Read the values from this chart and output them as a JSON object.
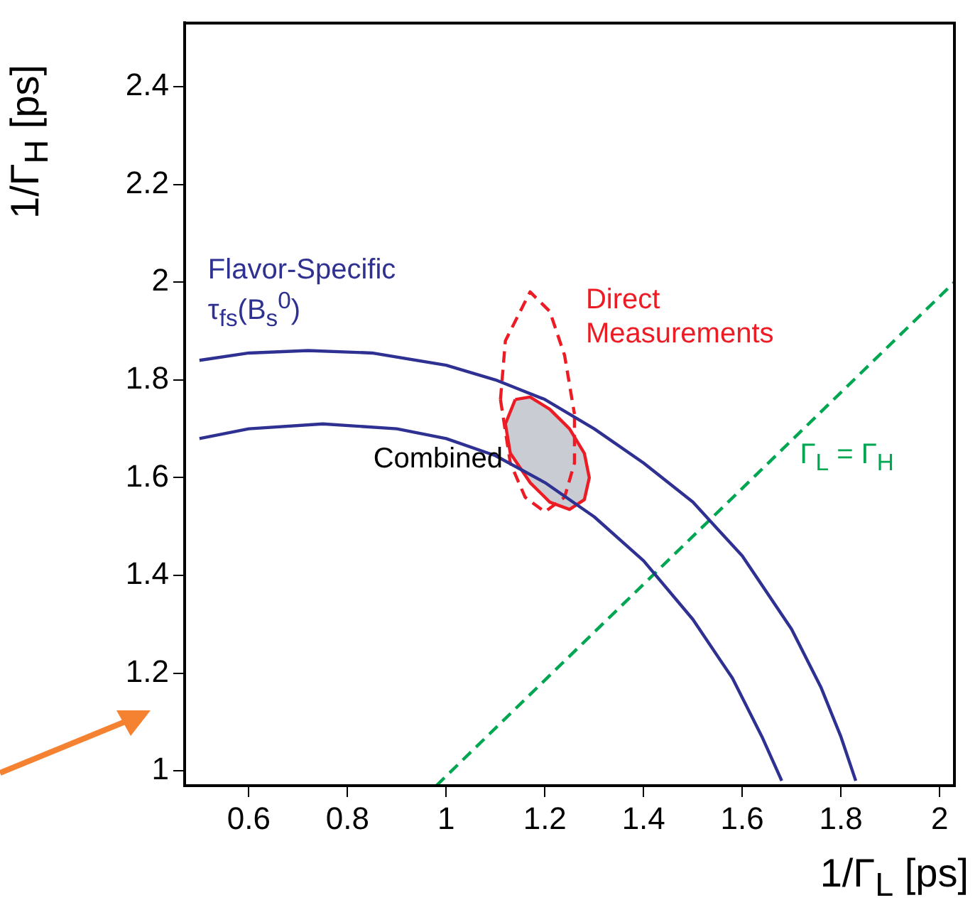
{
  "chart_data": {
    "type": "line",
    "xlabel": "1/Γ$_{L}$ [ps]",
    "ylabel": "1/Γ$_{H}$ [ps]",
    "xlim": [
      0.47,
      2.03
    ],
    "xticks": [
      0.6,
      0.8,
      1,
      1.2,
      1.4,
      1.6,
      1.8,
      2
    ],
    "ylim": [
      0.97,
      2.53
    ],
    "yticks": [
      1,
      1.2,
      1.4,
      1.6,
      1.8,
      2,
      2.2,
      2.4
    ],
    "grid": false,
    "legend": false,
    "series": [
      {
        "name": "Flavor-Specific τ$_{fs}$(B$_{s}$$^{0}$)",
        "color": "#2e3192",
        "line_style": "solid",
        "x": [
          0.5,
          0.6,
          0.72,
          0.85,
          1.0,
          1.1,
          1.2,
          1.3,
          1.4,
          1.5,
          1.6,
          1.7,
          1.76,
          1.8,
          1.83,
          null,
          0.5,
          0.6,
          0.75,
          0.9,
          1.0,
          1.1,
          1.2,
          1.3,
          1.4,
          1.5,
          1.58,
          1.64,
          1.68
        ],
        "values": [
          1.84,
          1.855,
          1.86,
          1.855,
          1.83,
          1.8,
          1.76,
          1.7,
          1.63,
          1.55,
          1.44,
          1.29,
          1.17,
          1.07,
          0.98,
          null,
          1.68,
          1.7,
          1.71,
          1.7,
          1.68,
          1.645,
          1.59,
          1.52,
          1.43,
          1.31,
          1.19,
          1.07,
          0.98
        ]
      },
      {
        "name": "Direct Measurements",
        "type": "line",
        "color": "#ed1c24",
        "line_style": "dashed",
        "x": [
          1.11,
          1.12,
          1.17,
          1.21,
          1.24,
          1.26,
          null,
          1.11,
          1.13,
          1.16,
          1.2,
          1.24,
          1.26,
          1.26
        ],
        "values": [
          1.76,
          1.88,
          1.98,
          1.94,
          1.85,
          1.73,
          null,
          1.76,
          1.63,
          1.56,
          1.53,
          1.56,
          1.63,
          1.73
        ]
      },
      {
        "name": "Combined",
        "type": "area",
        "color": "#ed1c24",
        "line_style": "solid",
        "x": [
          1.14,
          1.17,
          1.21,
          1.25,
          1.28,
          1.29,
          1.28,
          1.25,
          1.21,
          1.17,
          1.13,
          1.12,
          1.14
        ],
        "values": [
          1.76,
          1.765,
          1.74,
          1.7,
          1.65,
          1.6,
          1.555,
          1.535,
          1.55,
          1.59,
          1.65,
          1.71,
          1.76
        ]
      },
      {
        "name": "Γ$_{L}$ = Γ$_{H}$",
        "type": "line",
        "color": "#00a651",
        "line_style": "dashed",
        "x": [
          0.98,
          2.03
        ],
        "values": [
          0.97,
          2.0
        ]
      }
    ]
  }
}
